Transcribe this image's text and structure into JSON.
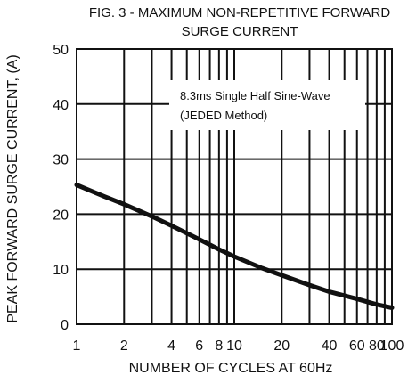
{
  "chart_data": {
    "type": "line",
    "title": "FIG. 3 - MAXIMUM NON-REPETITIVE FORWARD",
    "subtitle": "SURGE CURRENT",
    "xlabel": "NUMBER OF CYCLES AT 60Hz",
    "ylabel": "PEAK FORWARD SURGE CURRENT, (A)",
    "x_scale": "log",
    "xlim": [
      1,
      100
    ],
    "ylim": [
      0,
      50
    ],
    "x_ticks": [
      1,
      2,
      4,
      6,
      8,
      10,
      20,
      40,
      60,
      80,
      100
    ],
    "x_tick_labels": [
      "1",
      "2",
      "4",
      "6",
      "8",
      "10",
      "20",
      "40",
      "60",
      "80",
      "100"
    ],
    "y_ticks": [
      0,
      10,
      20,
      30,
      40,
      50
    ],
    "y_tick_labels": [
      "0",
      "10",
      "20",
      "30",
      "40",
      "50"
    ],
    "grid": true,
    "annotation": {
      "line1": "8.3ms Single Half Sine-Wave",
      "line2": "(JEDED Method)"
    },
    "series": [
      {
        "x": [
          1,
          1.5,
          2,
          3,
          4,
          6,
          8,
          10,
          15,
          20,
          30,
          40,
          60,
          80,
          100
        ],
        "values": [
          25.3,
          23.2,
          21.8,
          19.6,
          17.9,
          15.4,
          13.6,
          12.3,
          10.2,
          8.9,
          7.1,
          5.9,
          4.6,
          3.6,
          3.0
        ]
      }
    ],
    "colors": {
      "line": "#111111",
      "grid": "#111111",
      "background": "#ffffff"
    }
  }
}
